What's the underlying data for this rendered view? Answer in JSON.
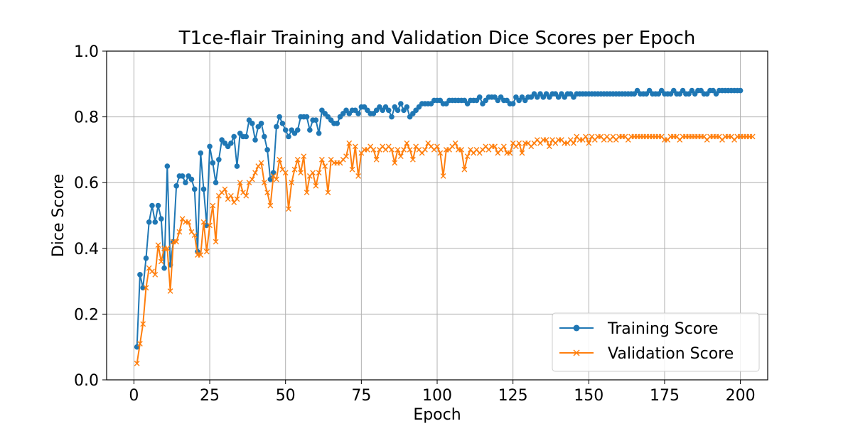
{
  "chart_data": {
    "type": "line",
    "title": "T1ce-flair Training and Validation Dice Scores per Epoch",
    "xlabel": "Epoch",
    "ylabel": "Dice Score",
    "xlim": [
      -9,
      209
    ],
    "ylim": [
      0.0,
      1.0
    ],
    "xticks": [
      0,
      25,
      50,
      75,
      100,
      125,
      150,
      175,
      200
    ],
    "yticks": [
      0.0,
      0.2,
      0.4,
      0.6,
      0.8,
      1.0
    ],
    "xtick_labels": [
      "0",
      "25",
      "50",
      "75",
      "100",
      "125",
      "150",
      "175",
      "200"
    ],
    "ytick_labels": [
      "0.0",
      "0.2",
      "0.4",
      "0.6",
      "0.8",
      "1.0"
    ],
    "grid": true,
    "legend_position": "lower-right",
    "series": [
      {
        "name": "Training Score",
        "color": "#1f77b4",
        "marker": "circle",
        "x_start": 1,
        "x_step": 1,
        "values": [
          0.1,
          0.32,
          0.28,
          0.37,
          0.48,
          0.53,
          0.48,
          0.53,
          0.49,
          0.34,
          0.65,
          0.35,
          0.42,
          0.59,
          0.62,
          0.62,
          0.6,
          0.62,
          0.61,
          0.58,
          0.39,
          0.69,
          0.58,
          0.47,
          0.71,
          0.66,
          0.6,
          0.67,
          0.73,
          0.72,
          0.71,
          0.72,
          0.74,
          0.65,
          0.75,
          0.74,
          0.74,
          0.79,
          0.78,
          0.73,
          0.77,
          0.78,
          0.74,
          0.7,
          0.61,
          0.63,
          0.77,
          0.8,
          0.78,
          0.76,
          0.74,
          0.76,
          0.75,
          0.76,
          0.8,
          0.8,
          0.8,
          0.76,
          0.79,
          0.79,
          0.75,
          0.82,
          0.81,
          0.8,
          0.79,
          0.78,
          0.78,
          0.8,
          0.81,
          0.82,
          0.81,
          0.82,
          0.82,
          0.81,
          0.83,
          0.83,
          0.82,
          0.81,
          0.81,
          0.82,
          0.83,
          0.82,
          0.83,
          0.82,
          0.8,
          0.83,
          0.82,
          0.84,
          0.82,
          0.83,
          0.8,
          0.81,
          0.82,
          0.83,
          0.84,
          0.84,
          0.84,
          0.84,
          0.85,
          0.85,
          0.85,
          0.84,
          0.84,
          0.85,
          0.85,
          0.85,
          0.85,
          0.85,
          0.85,
          0.84,
          0.85,
          0.85,
          0.85,
          0.86,
          0.84,
          0.85,
          0.86,
          0.86,
          0.86,
          0.85,
          0.86,
          0.85,
          0.85,
          0.84,
          0.84,
          0.86,
          0.85,
          0.86,
          0.85,
          0.86,
          0.86,
          0.87,
          0.86,
          0.87,
          0.86,
          0.87,
          0.86,
          0.87,
          0.87,
          0.86,
          0.87,
          0.86,
          0.87,
          0.87,
          0.86,
          0.87,
          0.87,
          0.87,
          0.87,
          0.87,
          0.87,
          0.87,
          0.87,
          0.87,
          0.87,
          0.87,
          0.87,
          0.87,
          0.87,
          0.87,
          0.87,
          0.87,
          0.87,
          0.87,
          0.87,
          0.88,
          0.87,
          0.87,
          0.87,
          0.88,
          0.87,
          0.87,
          0.87,
          0.88,
          0.87,
          0.87,
          0.87,
          0.88,
          0.87,
          0.87,
          0.88,
          0.87,
          0.87,
          0.88,
          0.87,
          0.88,
          0.88,
          0.87,
          0.87,
          0.88,
          0.88,
          0.87,
          0.88,
          0.88,
          0.88,
          0.88,
          0.88,
          0.88,
          0.88,
          0.88
        ]
      },
      {
        "name": "Validation Score",
        "color": "#ff7f0e",
        "marker": "x",
        "x_start": 1,
        "x_step": 1,
        "values": [
          0.05,
          0.11,
          0.17,
          0.28,
          0.34,
          0.33,
          0.32,
          0.41,
          0.36,
          0.4,
          0.4,
          0.27,
          0.42,
          0.42,
          0.45,
          0.49,
          0.48,
          0.48,
          0.45,
          0.44,
          0.38,
          0.38,
          0.48,
          0.39,
          0.47,
          0.53,
          0.42,
          0.56,
          0.57,
          0.58,
          0.55,
          0.56,
          0.54,
          0.55,
          0.6,
          0.57,
          0.56,
          0.6,
          0.61,
          0.63,
          0.65,
          0.66,
          0.6,
          0.57,
          0.53,
          0.62,
          0.61,
          0.67,
          0.64,
          0.63,
          0.52,
          0.6,
          0.64,
          0.67,
          0.63,
          0.68,
          0.57,
          0.62,
          0.63,
          0.59,
          0.63,
          0.67,
          0.65,
          0.57,
          0.67,
          0.66,
          0.66,
          0.66,
          0.67,
          0.68,
          0.72,
          0.64,
          0.71,
          0.62,
          0.69,
          0.7,
          0.7,
          0.71,
          0.7,
          0.67,
          0.7,
          0.71,
          0.7,
          0.71,
          0.7,
          0.66,
          0.7,
          0.68,
          0.7,
          0.72,
          0.7,
          0.67,
          0.71,
          0.7,
          0.69,
          0.7,
          0.72,
          0.71,
          0.7,
          0.71,
          0.69,
          0.62,
          0.7,
          0.7,
          0.71,
          0.72,
          0.7,
          0.7,
          0.64,
          0.68,
          0.7,
          0.69,
          0.7,
          0.69,
          0.7,
          0.71,
          0.7,
          0.71,
          0.71,
          0.69,
          0.7,
          0.71,
          0.69,
          0.69,
          0.72,
          0.71,
          0.72,
          0.69,
          0.72,
          0.72,
          0.71,
          0.72,
          0.73,
          0.72,
          0.73,
          0.73,
          0.71,
          0.73,
          0.72,
          0.73,
          0.73,
          0.72,
          0.72,
          0.73,
          0.72,
          0.74,
          0.73,
          0.73,
          0.74,
          0.72,
          0.74,
          0.73,
          0.74,
          0.74,
          0.73,
          0.74,
          0.73,
          0.74,
          0.73,
          0.74,
          0.74,
          0.74,
          0.73,
          0.74,
          0.74,
          0.74,
          0.74,
          0.74,
          0.74,
          0.74,
          0.74,
          0.74,
          0.74,
          0.74,
          0.73,
          0.73,
          0.74,
          0.74,
          0.74,
          0.73,
          0.74,
          0.74,
          0.74,
          0.74,
          0.74,
          0.74,
          0.74,
          0.74,
          0.73,
          0.74,
          0.74,
          0.74,
          0.74,
          0.73,
          0.74,
          0.74,
          0.74,
          0.73,
          0.74,
          0.74,
          0.74,
          0.74,
          0.74,
          0.74
        ]
      }
    ]
  }
}
